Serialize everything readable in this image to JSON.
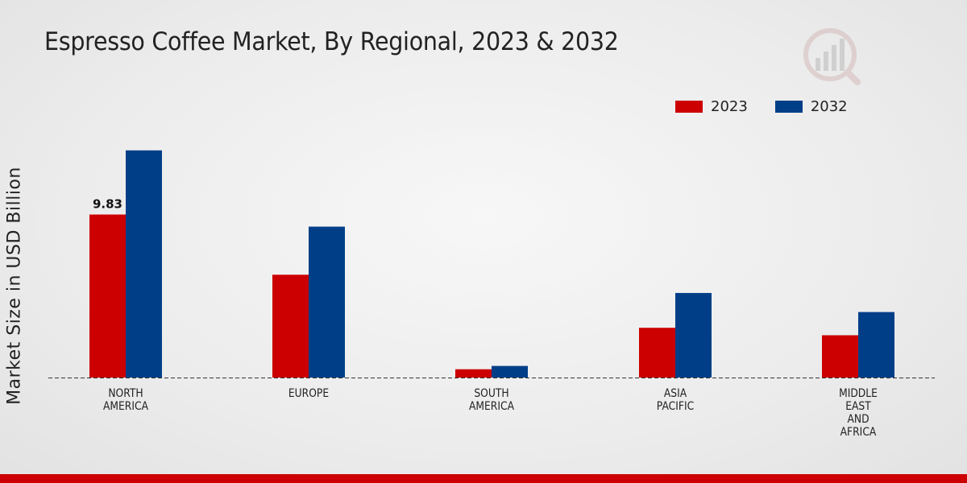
{
  "title": "Espresso Coffee Market, By Regional, 2023 & 2032",
  "colors": {
    "series_2023": "#cc0000",
    "series_2032": "#003f88",
    "footer": "#cc0000"
  },
  "chart_data": {
    "type": "bar",
    "title": "Espresso Coffee Market, By Regional, 2023 & 2032",
    "xlabel": "",
    "ylabel": "Market Size in USD Billion",
    "ylim": [
      0,
      15
    ],
    "grid": false,
    "legend_position": "top-right",
    "categories": [
      [
        "NORTH",
        "AMERICA"
      ],
      [
        "EUROPE"
      ],
      [
        "SOUTH",
        "AMERICA"
      ],
      [
        "ASIA",
        "PACIFIC"
      ],
      [
        "MIDDLE",
        "EAST",
        "AND",
        "AFRICA"
      ]
    ],
    "series": [
      {
        "name": "2023",
        "values": [
          9.83,
          6.2,
          0.5,
          3.0,
          2.55
        ]
      },
      {
        "name": "2032",
        "values": [
          13.7,
          9.1,
          0.7,
          5.1,
          3.95
        ]
      }
    ],
    "annotations": [
      {
        "series": 0,
        "category": 0,
        "label": "9.83"
      }
    ]
  }
}
